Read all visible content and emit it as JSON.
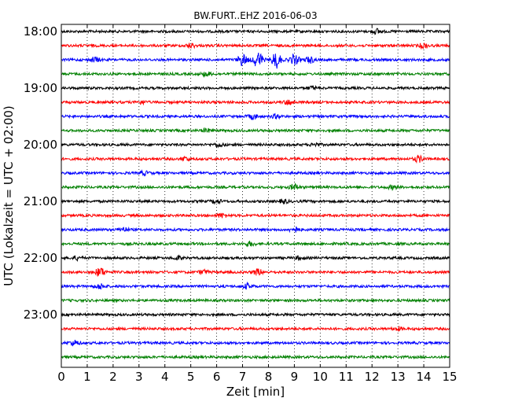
{
  "chart_data": {
    "type": "line",
    "title": "BW.FURT..EHZ 2016-06-03",
    "xlabel": "Zeit  [min]",
    "ylabel": "UTC (Lokalzeit = UTC + 02:00)",
    "xlim": [
      0,
      15
    ],
    "x_ticks": [
      "0",
      "1",
      "2",
      "3",
      "4",
      "5",
      "6",
      "7",
      "8",
      "9",
      "10",
      "11",
      "12",
      "13",
      "14",
      "15"
    ],
    "y_tick_labels": [
      "18:00",
      "19:00",
      "20:00",
      "21:00",
      "22:00",
      "23:00"
    ],
    "grid": true,
    "trace_interval_min": 15,
    "traces": [
      {
        "start": "18:00",
        "color": "#000000",
        "events": [
          [
            12.2,
            0.3
          ]
        ]
      },
      {
        "start": "18:15",
        "color": "#ff0000",
        "events": [
          [
            5.0,
            0.25
          ],
          [
            14.0,
            0.3
          ]
        ]
      },
      {
        "start": "18:30",
        "color": "#0000ff",
        "events": [
          [
            1.3,
            0.3
          ],
          [
            7.0,
            0.7
          ],
          [
            7.6,
            1.0
          ],
          [
            8.3,
            1.0
          ],
          [
            9.0,
            0.6
          ],
          [
            9.6,
            0.35
          ]
        ]
      },
      {
        "start": "18:45",
        "color": "#008000",
        "events": [
          [
            5.6,
            0.25
          ]
        ]
      },
      {
        "start": "19:00",
        "color": "#000000",
        "events": [
          [
            9.7,
            0.2
          ]
        ]
      },
      {
        "start": "19:15",
        "color": "#ff0000",
        "events": [
          [
            3.1,
            0.2
          ],
          [
            8.8,
            0.3
          ]
        ]
      },
      {
        "start": "19:30",
        "color": "#0000ff",
        "events": [
          [
            7.4,
            0.3
          ],
          [
            8.3,
            0.2
          ]
        ]
      },
      {
        "start": "19:45",
        "color": "#008000",
        "events": [
          [
            5.6,
            0.2
          ]
        ]
      },
      {
        "start": "20:00",
        "color": "#000000",
        "events": [
          [
            6.1,
            0.25
          ],
          [
            9.8,
            0.2
          ]
        ]
      },
      {
        "start": "20:15",
        "color": "#ff0000",
        "events": [
          [
            4.8,
            0.25
          ],
          [
            13.8,
            0.35
          ]
        ]
      },
      {
        "start": "20:30",
        "color": "#0000ff",
        "events": [
          [
            3.2,
            0.2
          ]
        ]
      },
      {
        "start": "20:45",
        "color": "#008000",
        "events": [
          [
            9.0,
            0.35
          ],
          [
            12.8,
            0.2
          ]
        ]
      },
      {
        "start": "21:00",
        "color": "#000000",
        "events": [
          [
            6.0,
            0.25
          ],
          [
            8.6,
            0.2
          ]
        ]
      },
      {
        "start": "21:15",
        "color": "#ff0000",
        "events": [
          [
            6.2,
            0.25
          ]
        ]
      },
      {
        "start": "21:30",
        "color": "#0000ff",
        "events": [
          [
            2.4,
            0.25
          ],
          [
            9.0,
            0.3
          ]
        ]
      },
      {
        "start": "21:45",
        "color": "#008000",
        "events": [
          [
            7.3,
            0.25
          ]
        ]
      },
      {
        "start": "22:00",
        "color": "#000000",
        "events": [
          [
            0.6,
            0.2
          ],
          [
            4.5,
            0.2
          ],
          [
            9.2,
            0.2
          ]
        ]
      },
      {
        "start": "22:15",
        "color": "#ff0000",
        "events": [
          [
            1.5,
            0.55
          ],
          [
            7.6,
            0.35
          ],
          [
            5.5,
            0.25
          ]
        ]
      },
      {
        "start": "22:30",
        "color": "#0000ff",
        "events": [
          [
            1.5,
            0.3
          ],
          [
            7.2,
            0.3
          ]
        ]
      },
      {
        "start": "22:45",
        "color": "#008000",
        "events": []
      },
      {
        "start": "23:00",
        "color": "#000000",
        "events": []
      },
      {
        "start": "23:15",
        "color": "#ff0000",
        "events": [
          [
            13.0,
            0.2
          ]
        ]
      },
      {
        "start": "23:30",
        "color": "#0000ff",
        "events": [
          [
            0.5,
            0.3
          ]
        ]
      },
      {
        "start": "23:45",
        "color": "#008000",
        "events": []
      }
    ]
  }
}
